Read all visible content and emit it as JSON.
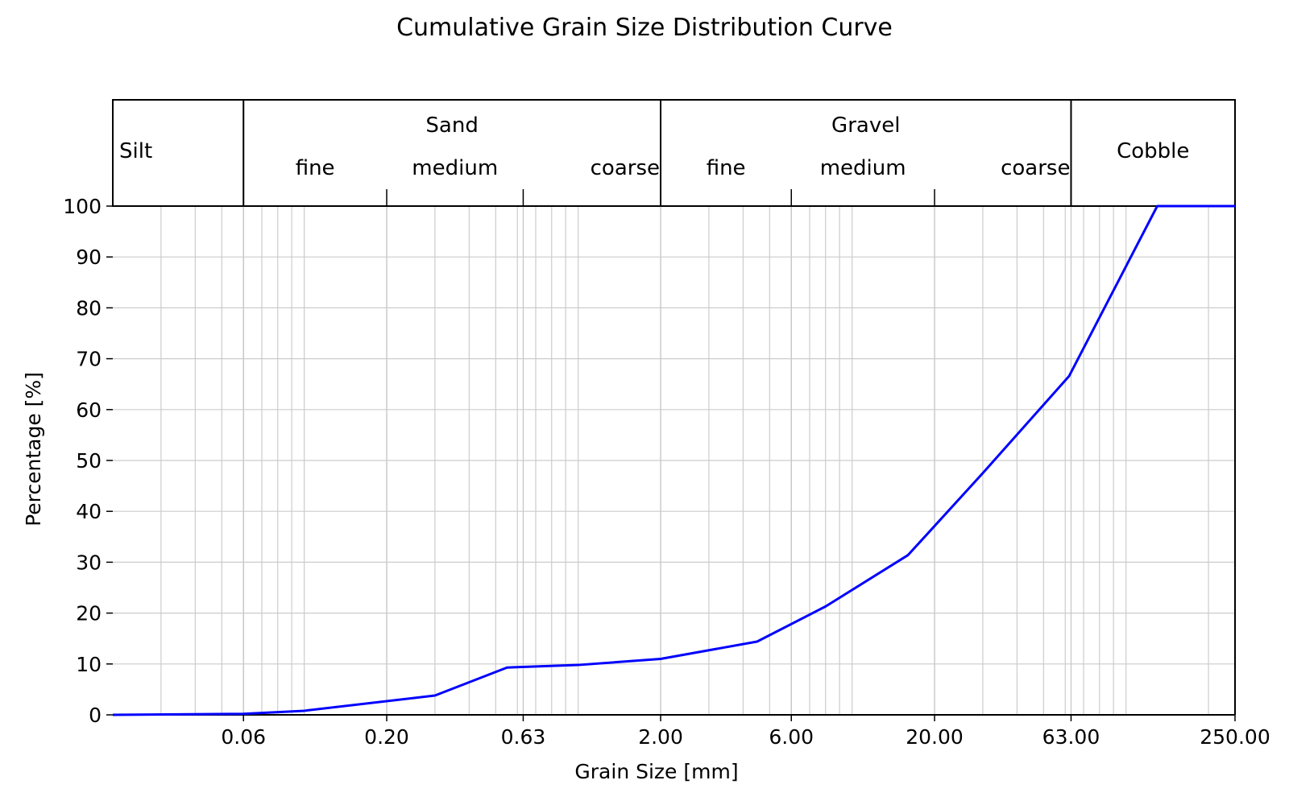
{
  "chart_data": {
    "type": "line",
    "title": "Cumulative Grain Size Distribution Curve",
    "xlabel": "Grain Size [mm]",
    "ylabel": "Percentage [%]",
    "x_scale": "log",
    "xlim": [
      0.02,
      250
    ],
    "ylim": [
      0,
      100
    ],
    "grid": true,
    "x_ticks": [
      {
        "value": 0.06,
        "label": "0.06"
      },
      {
        "value": 0.2,
        "label": "0.20"
      },
      {
        "value": 0.63,
        "label": "0.63"
      },
      {
        "value": 2.0,
        "label": "2.00"
      },
      {
        "value": 6.0,
        "label": "6.00"
      },
      {
        "value": 20.0,
        "label": "20.00"
      },
      {
        "value": 63.0,
        "label": "63.00"
      },
      {
        "value": 250.0,
        "label": "250.00"
      }
    ],
    "y_ticks": [
      0,
      10,
      20,
      30,
      40,
      50,
      60,
      70,
      80,
      90,
      100
    ],
    "series": [
      {
        "color": "#0000ff",
        "points": [
          {
            "x": 0.02,
            "y": 0.0
          },
          {
            "x": 0.06,
            "y": 0.2
          },
          {
            "x": 0.1,
            "y": 0.8
          },
          {
            "x": 0.3,
            "y": 3.8
          },
          {
            "x": 0.55,
            "y": 9.3
          },
          {
            "x": 1.0,
            "y": 9.8
          },
          {
            "x": 2.0,
            "y": 11.0
          },
          {
            "x": 4.5,
            "y": 14.4
          },
          {
            "x": 8.0,
            "y": 21.3
          },
          {
            "x": 16.0,
            "y": 31.4
          },
          {
            "x": 30.0,
            "y": 47.5
          },
          {
            "x": 62.0,
            "y": 66.6
          },
          {
            "x": 130.0,
            "y": 100.0
          },
          {
            "x": 250.0,
            "y": 100.0
          }
        ]
      }
    ],
    "classification": {
      "boundaries": [
        0.06,
        2.0,
        63.0
      ],
      "main": [
        {
          "label": "Silt",
          "from": 0.02,
          "to": 0.06
        },
        {
          "label": "Sand",
          "from": 0.06,
          "to": 2.0
        },
        {
          "label": "Gravel",
          "from": 2.0,
          "to": 63.0
        },
        {
          "label": "Cobble",
          "from": 63.0,
          "to": 250.0
        }
      ],
      "sub": [
        {
          "label": "fine",
          "from": 0.06,
          "to": 0.2
        },
        {
          "label": "medium",
          "from": 0.2,
          "to": 0.63
        },
        {
          "label": "coarse",
          "from": 0.63,
          "to": 2.0
        },
        {
          "label": "fine",
          "from": 2.0,
          "to": 6.0
        },
        {
          "label": "medium",
          "from": 6.0,
          "to": 20.0
        },
        {
          "label": "coarse",
          "from": 20.0,
          "to": 63.0
        }
      ],
      "sub_ticks": [
        0.06,
        0.2,
        0.63,
        6.0,
        20.0
      ]
    }
  }
}
